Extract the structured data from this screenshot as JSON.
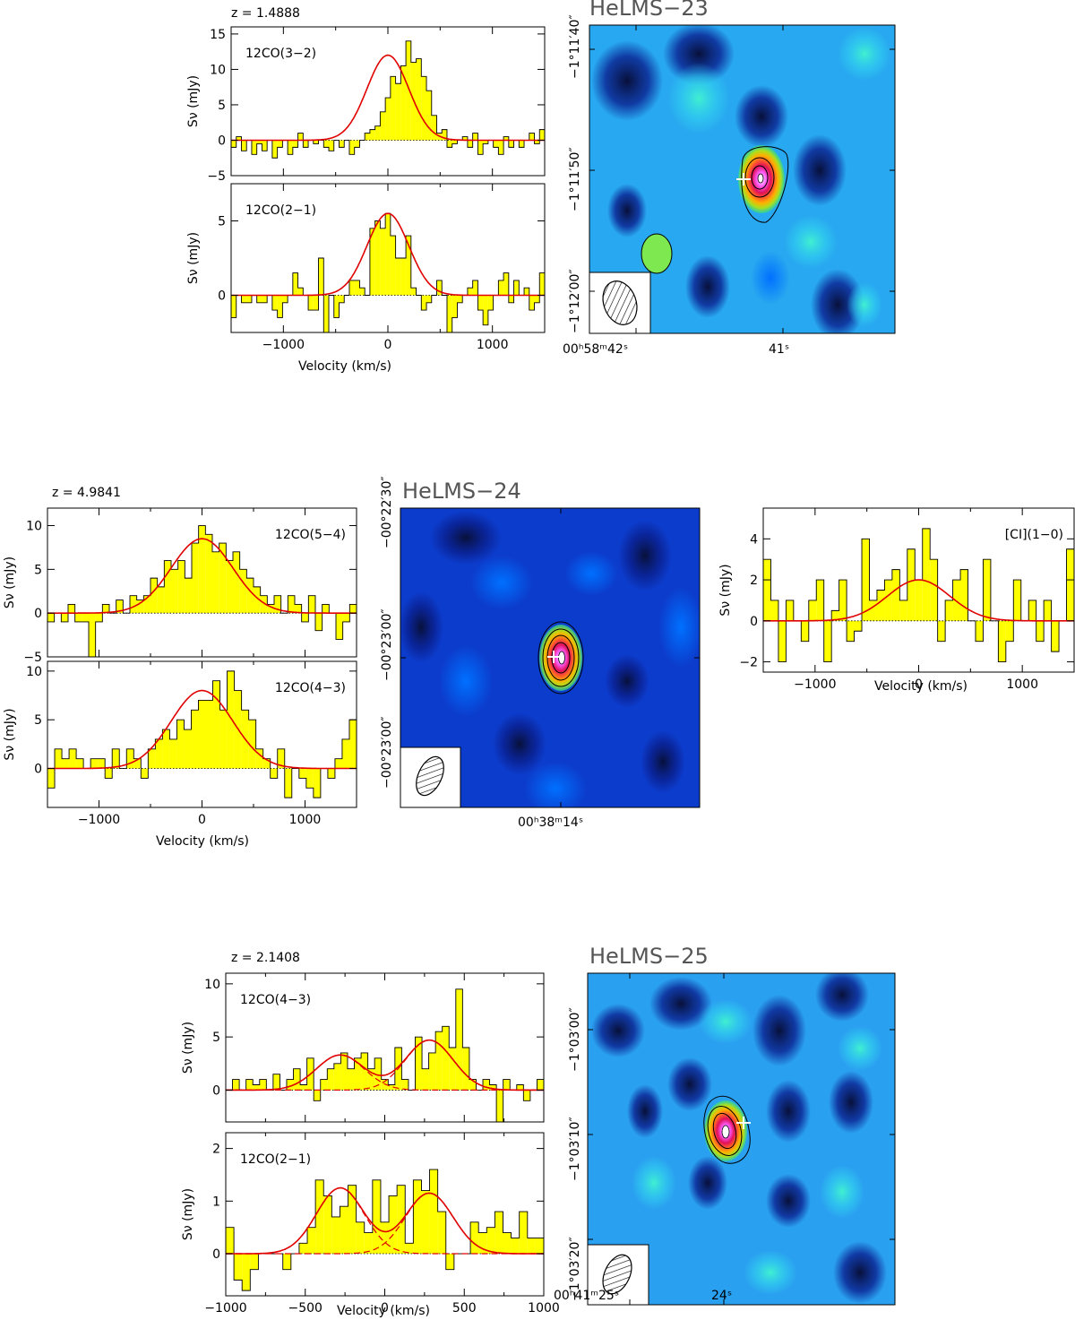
{
  "figure": {
    "panels": [
      {
        "source": "HeLMS−23",
        "redshift": "z = 1.4888",
        "xlabel": "Velocity (km/s)",
        "ylabel": "Sν (mJy)",
        "map": {
          "ra_ticks": [
            "00ʰ58ᵐ42ˢ",
            "41ˢ"
          ],
          "dec_ticks": [
            "−1°11′40″",
            "−1°11′50″",
            "−1°12′00″"
          ]
        }
      },
      {
        "source": "HeLMS−24",
        "redshift": "z = 4.9841",
        "xlabel": "Velocity (km/s)",
        "ylabel": "Sν (mJy)",
        "map": {
          "ra_ticks": [
            "00ʰ38ᵐ14ˢ"
          ],
          "dec_ticks": [
            "−00°22′30″",
            "−00°23′00″",
            "−00°23′00″"
          ]
        }
      },
      {
        "source": "HeLMS−25",
        "redshift": "z = 2.1408",
        "xlabel": "Velocity (km/s)",
        "ylabel": "Sν (mJy)",
        "map": {
          "ra_ticks": [
            "00ʰ41ᵐ25ˢ",
            "24ˢ"
          ],
          "dec_ticks": [
            "−1°03′00″",
            "−1°03′10″",
            "−1°03′20″"
          ]
        }
      }
    ]
  },
  "chart_data": [
    {
      "type": "bar",
      "title": "z = 1.4888",
      "line": "12CO(3−2)",
      "xlabel": "",
      "ylabel": "Sν (mJy)",
      "xlim": [
        -1500,
        1500
      ],
      "ylim": [
        -5,
        16
      ],
      "yticks": [
        -5,
        0,
        5,
        10,
        15
      ],
      "fit": {
        "amp": 12,
        "center": 0,
        "sigma": 200
      },
      "channels": [
        -1,
        0.5,
        -1.5,
        0,
        -2,
        -0.5,
        -1.5,
        0,
        -2.5,
        -1,
        0,
        -2,
        -1,
        1,
        -1,
        0,
        -0.5,
        0,
        -1,
        -1.5,
        0,
        -1,
        0,
        -2,
        -1,
        0,
        1,
        1.5,
        2,
        4,
        6,
        9,
        8,
        10.5,
        14,
        11,
        11.5,
        9,
        7,
        3.5,
        1,
        1.5,
        -1,
        -0.5,
        0,
        0.5,
        -1,
        1,
        -2,
        -0.5,
        0,
        -1,
        -2,
        0.5,
        -1,
        0,
        -1,
        0,
        1,
        -0.5,
        1.5
      ]
    },
    {
      "type": "bar",
      "line": "12CO(2−1)",
      "xlabel": "Velocity (km/s)",
      "ylabel": "Sν (mJy)",
      "xlim": [
        -1500,
        1500
      ],
      "ylim": [
        -2.5,
        7.5
      ],
      "yticks": [
        0,
        5
      ],
      "xticks": [
        -1000,
        0,
        1000
      ],
      "fit": {
        "amp": 5.5,
        "center": 0,
        "sigma": 200
      },
      "channels": [
        -1.5,
        0,
        -0.5,
        -0.5,
        0,
        -0.5,
        -0.5,
        0,
        -1,
        -1.5,
        -0.5,
        0,
        1.5,
        0.5,
        0,
        -1,
        -1,
        2.5,
        -2.5,
        0,
        -1.5,
        -0.5,
        0,
        1,
        1,
        0.5,
        0,
        4.5,
        5,
        4.5,
        5.5,
        4,
        2.5,
        2.5,
        4,
        0.5,
        0,
        -1,
        -0.5,
        0,
        1,
        0,
        -2.5,
        -1.5,
        -0.5,
        0,
        0.5,
        1,
        -1,
        -2,
        -1,
        0,
        1,
        1.5,
        -0.5,
        1,
        0,
        0.5,
        -1,
        -0.5,
        1.5
      ]
    },
    {
      "type": "bar",
      "title": "z = 4.9841",
      "line": "12CO(5−4)",
      "xlabel": "",
      "ylabel": "Sν (mJy)",
      "xlim": [
        -1500,
        1500
      ],
      "ylim": [
        -5,
        12
      ],
      "yticks": [
        -5,
        0,
        5,
        10
      ],
      "fit": {
        "amp": 8.5,
        "center": 0,
        "sigma": 300
      },
      "channels": [
        -1,
        0,
        -1,
        1,
        -1,
        -1,
        -5,
        -1,
        1,
        0,
        1.5,
        0,
        2,
        1.5,
        2,
        4,
        3,
        6,
        5,
        6,
        4,
        8,
        10,
        9,
        7,
        8,
        6,
        7,
        5,
        4,
        3,
        2,
        1,
        2,
        0,
        2,
        1,
        -1,
        2,
        -2,
        1,
        0,
        -3,
        -1,
        1
      ]
    },
    {
      "type": "bar",
      "line": "12CO(4−3)",
      "xlabel": "Velocity (km/s)",
      "ylabel": "Sν (mJy)",
      "xlim": [
        -1500,
        1500
      ],
      "ylim": [
        -4,
        11
      ],
      "yticks": [
        0,
        5,
        10
      ],
      "xticks": [
        -1000,
        0,
        1000
      ],
      "fit": {
        "amp": 8,
        "center": 0,
        "sigma": 300
      },
      "channels": [
        -2,
        2,
        1,
        2,
        1,
        0,
        1,
        1,
        -1,
        2,
        0,
        2,
        1,
        -1,
        2,
        3,
        4,
        3,
        5,
        4,
        6,
        7,
        7,
        9,
        6,
        10,
        8,
        6,
        5,
        2,
        1,
        -1,
        2,
        -3,
        0,
        -1,
        -2,
        -3,
        0,
        -1,
        1,
        3,
        5
      ]
    },
    {
      "type": "bar",
      "line": "[CI](1−0)",
      "xlabel": "Velocity (km/s)",
      "ylabel": "Sν (mJy)",
      "xlim": [
        -1500,
        1500
      ],
      "ylim": [
        -2.5,
        5.5
      ],
      "yticks": [
        -2,
        0,
        2,
        4
      ],
      "xticks": [
        -1000,
        0,
        1000
      ],
      "fit": {
        "amp": 2,
        "center": 0,
        "sigma": 300
      },
      "channels": [
        3,
        1,
        -2,
        1,
        0,
        -1,
        1,
        2,
        -2,
        0.5,
        2,
        -1,
        -0.5,
        4,
        1,
        1.5,
        2,
        2.5,
        1,
        3.5,
        2,
        4.5,
        3,
        -1,
        1,
        2,
        2.5,
        0,
        -1,
        3,
        0,
        -2,
        -1,
        2,
        0,
        1,
        -1,
        1,
        -1.5,
        0,
        3.5
      ]
    },
    {
      "type": "bar",
      "title": "z = 2.1408",
      "line": "12CO(4−3)",
      "xlabel": "",
      "ylabel": "Sν (mJy)",
      "xlim": [
        -1000,
        1000
      ],
      "ylim": [
        -3,
        11
      ],
      "yticks": [
        0,
        5,
        10
      ],
      "fit": {
        "components": [
          {
            "amp": 3.3,
            "center": -280,
            "sigma": 150
          },
          {
            "amp": 4.7,
            "center": 280,
            "sigma": 150
          }
        ]
      },
      "channels": [
        0,
        1,
        0,
        1,
        0.5,
        1,
        0,
        1.5,
        0,
        1,
        2,
        0.5,
        3,
        -1,
        1,
        2,
        2.5,
        3.5,
        2,
        3,
        3.5,
        2,
        3,
        1,
        0.5,
        4,
        1,
        0,
        5,
        2,
        3.5,
        5.5,
        6,
        4,
        9.5,
        4,
        1,
        0,
        1,
        0.5,
        -3,
        1,
        0,
        0.5,
        -1,
        0,
        1
      ]
    },
    {
      "type": "bar",
      "line": "12CO(2−1)",
      "xlabel": "Velocity (km/s)",
      "ylabel": "Sν (mJy)",
      "xlim": [
        -1000,
        1000
      ],
      "ylim": [
        -0.8,
        2.3
      ],
      "yticks": [
        0,
        1,
        2
      ],
      "xticks": [
        -1000,
        -500,
        0,
        500,
        1000
      ],
      "fit": {
        "components": [
          {
            "amp": 1.25,
            "center": -280,
            "sigma": 150
          },
          {
            "amp": 1.15,
            "center": 280,
            "sigma": 150
          }
        ]
      },
      "channels": [
        0.5,
        -0.5,
        -0.7,
        -0.3,
        0,
        0,
        0,
        -0.3,
        0,
        0.2,
        0.5,
        1.4,
        1.1,
        0.7,
        0.9,
        1.3,
        0.6,
        0.4,
        1.4,
        0.6,
        1.1,
        1.3,
        0.2,
        1.4,
        1.2,
        1.6,
        0.8,
        -0.3,
        0,
        0,
        0.6,
        0.4,
        0.5,
        0.8,
        0.4,
        0.3,
        0.8,
        0.3,
        0.3
      ]
    }
  ]
}
